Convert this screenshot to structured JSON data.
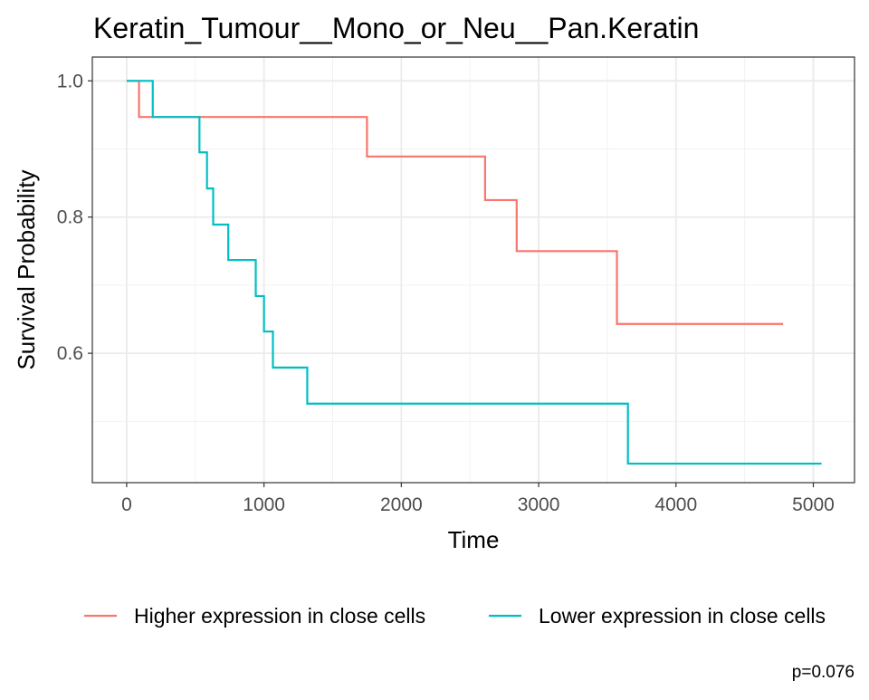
{
  "chart_data": {
    "type": "line",
    "subtype": "kaplan-meier-step",
    "title": "Keratin_Tumour__Mono_or_Neu__Pan.Keratin",
    "xlabel": "Time",
    "ylabel": "Survival Probability",
    "xlim": [
      -250,
      5300
    ],
    "ylim": [
      0.41,
      1.035
    ],
    "x_ticks": [
      0,
      1000,
      2000,
      3000,
      4000,
      5000
    ],
    "x_tick_labels": [
      "0",
      "1000",
      "2000",
      "3000",
      "4000",
      "5000"
    ],
    "y_ticks": [
      0.6,
      0.8,
      1.0
    ],
    "y_tick_labels": [
      "0.6",
      "0.8",
      "1.0"
    ],
    "grid": true,
    "legend_position": "bottom",
    "annotation": "p=0.076",
    "series": [
      {
        "name": "Higher expression in close cells",
        "color": "#F8766D",
        "x": [
          0,
          90,
          1750,
          2610,
          2840,
          3570,
          4780
        ],
        "y": [
          1.0,
          0.947,
          0.889,
          0.825,
          0.75,
          0.643,
          0.643
        ]
      },
      {
        "name": "Lower expression in close cells",
        "color": "#00BFC4",
        "x": [
          0,
          190,
          530,
          585,
          630,
          740,
          940,
          1000,
          1065,
          1315,
          3650,
          5060
        ],
        "y": [
          1.0,
          0.947,
          0.895,
          0.842,
          0.789,
          0.737,
          0.684,
          0.632,
          0.579,
          0.526,
          0.438,
          0.438
        ]
      }
    ]
  }
}
